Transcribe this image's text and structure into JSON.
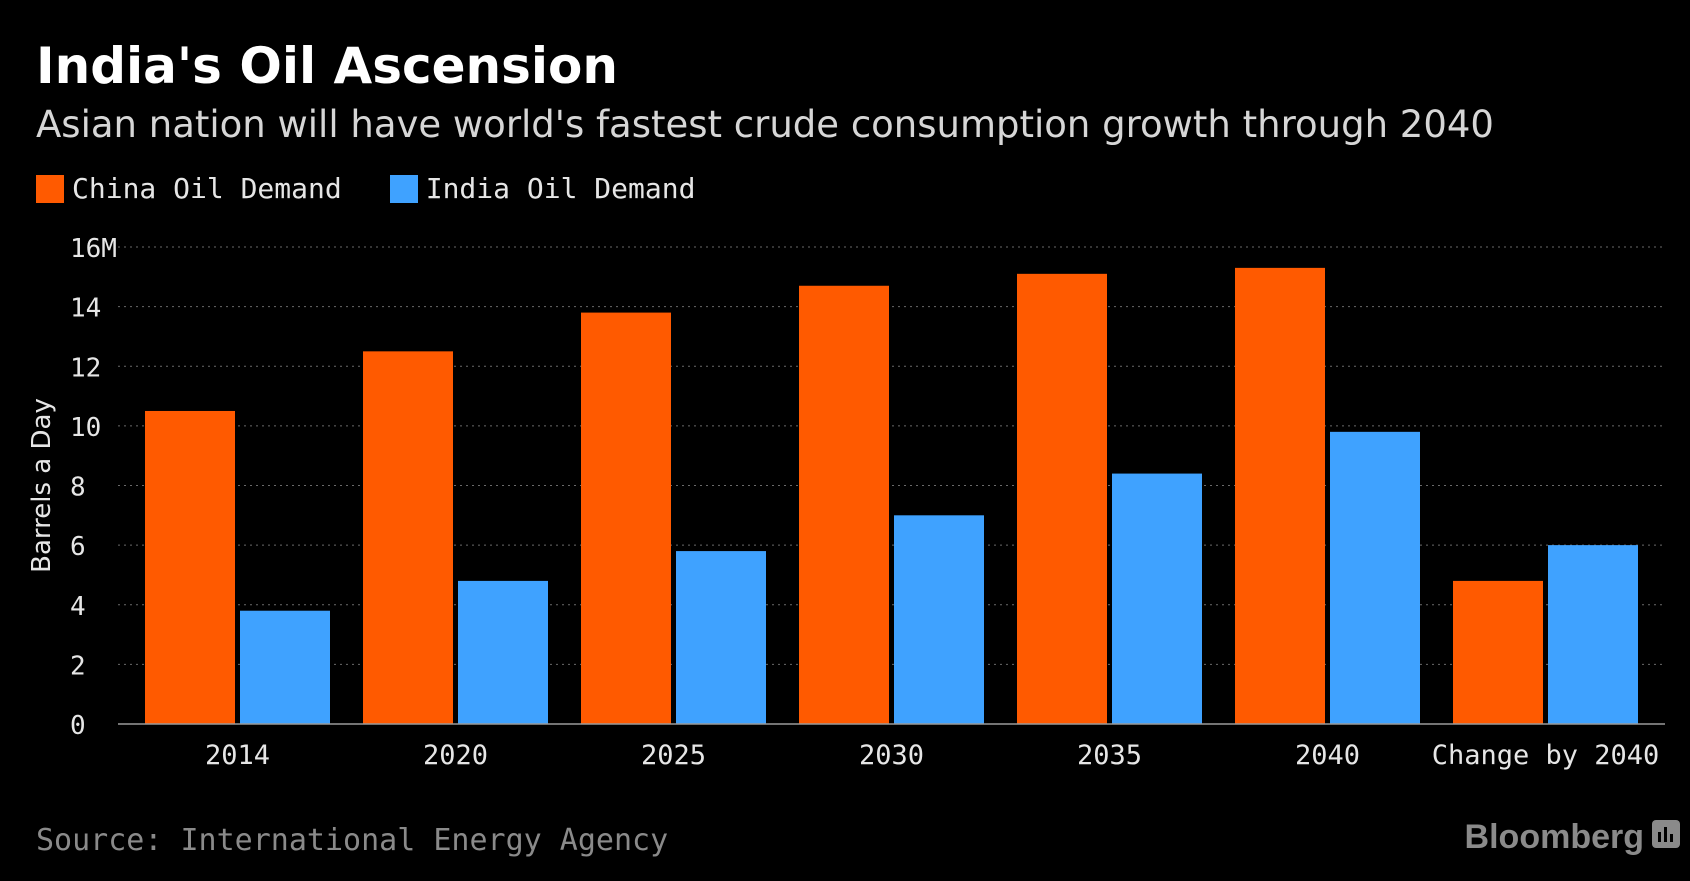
{
  "chart_data": {
    "type": "bar",
    "title": "India's Oil Ascension",
    "subtitle": "Asian nation will have world's fastest crude consumption growth through 2040",
    "ylabel": "Barrels a Day",
    "xlabel": "",
    "categories": [
      "2014",
      "2020",
      "2025",
      "2030",
      "2035",
      "2040",
      "Change by 2040"
    ],
    "series": [
      {
        "name": "China Oil Demand",
        "color": "#ff5a00",
        "values": [
          10.5,
          12.5,
          13.8,
          14.7,
          15.1,
          15.3,
          4.8
        ]
      },
      {
        "name": "India Oil Demand",
        "color": "#3fa2ff",
        "values": [
          3.8,
          4.8,
          5.8,
          7.0,
          8.4,
          9.8,
          6.0
        ]
      }
    ],
    "ylim": [
      0,
      16
    ],
    "yticks": [
      0,
      2,
      4,
      6,
      8,
      10,
      12,
      14,
      16
    ],
    "ytick_labels": [
      "0",
      "2",
      "4",
      "6",
      "8",
      "10",
      "12",
      "14",
      "16M"
    ],
    "grid": true,
    "legend_position": "top-left",
    "source": "Source: International Energy Agency",
    "brand": "Bloomberg",
    "brand_icon": "bloomberg-chart-icon"
  }
}
